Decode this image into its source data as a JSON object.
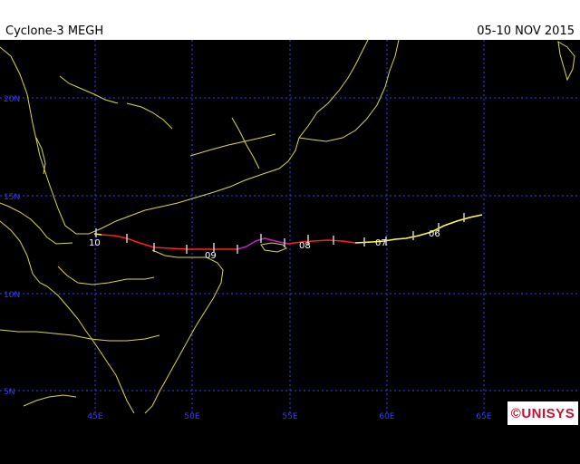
{
  "header": {
    "title": "Cyclone-3 MEGH",
    "dates": "05-10 NOV 2015"
  },
  "map": {
    "lon_labels": [
      "45E",
      "50E",
      "55E",
      "60E",
      "65E"
    ],
    "lat_labels": [
      "20N",
      "15N",
      "10N",
      "5N"
    ],
    "grid_color": "#3b3bff",
    "coast_color": "#d8d84a"
  },
  "track": {
    "day_labels": [
      "10",
      "09",
      "08",
      "07",
      "06"
    ],
    "colors": {
      "tropical_depression": "#ffff40",
      "tropical_storm": "#ff2020",
      "typhoon_cat1": "#c020c0"
    }
  },
  "logo": {
    "text": "©UNISYS"
  }
}
